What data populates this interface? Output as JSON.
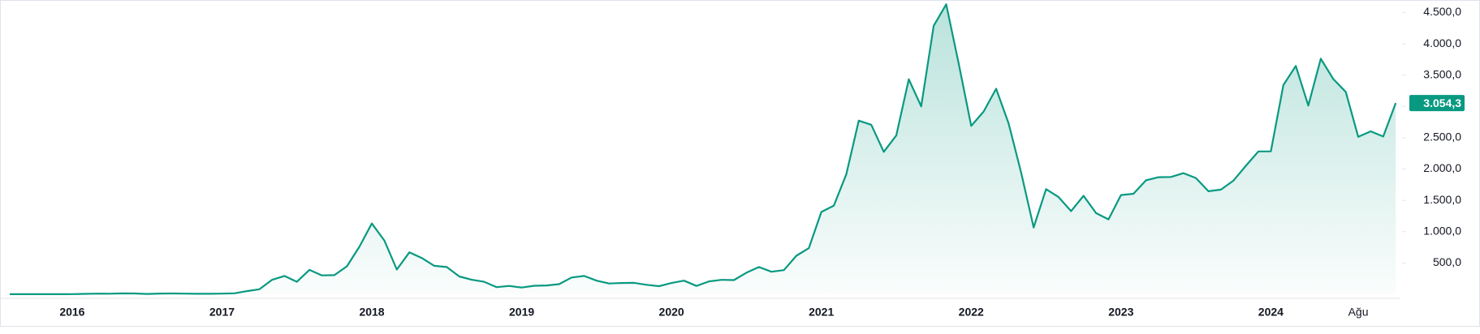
{
  "chart_data": {
    "type": "line",
    "color": "#089981",
    "categories": [
      null,
      null,
      null,
      null,
      null,
      "2016",
      null,
      null,
      null,
      null,
      null,
      null,
      null,
      null,
      null,
      null,
      null,
      "2017",
      null,
      null,
      null,
      null,
      null,
      null,
      null,
      null,
      null,
      null,
      null,
      "2018",
      null,
      null,
      null,
      null,
      null,
      null,
      null,
      null,
      null,
      null,
      null,
      "2019",
      null,
      null,
      null,
      null,
      null,
      null,
      null,
      null,
      null,
      null,
      null,
      "2020",
      null,
      null,
      null,
      null,
      null,
      null,
      null,
      null,
      null,
      null,
      null,
      "2021",
      null,
      null,
      null,
      null,
      null,
      null,
      null,
      null,
      null,
      null,
      null,
      "2022",
      null,
      null,
      null,
      null,
      null,
      null,
      null,
      null,
      null,
      null,
      null,
      "2023",
      null,
      null,
      null,
      null,
      null,
      null,
      null,
      null,
      null,
      null,
      null,
      "2024",
      null,
      null,
      null,
      null,
      null,
      null,
      "Ağu",
      null,
      null,
      null
    ],
    "values": [
      1.3,
      0.7,
      0.9,
      0.9,
      0.9,
      2.2,
      6.4,
      11,
      8.8,
      14,
      12.5,
      5.6,
      11.5,
      13,
      11,
      8.3,
      8,
      10.7,
      16,
      50,
      80,
      230,
      293,
      200,
      390,
      302,
      305,
      447,
      757,
      1130,
      860,
      395,
      670,
      580,
      455,
      435,
      285,
      232,
      200,
      114,
      133,
      107,
      136,
      141,
      162,
      268,
      293,
      218,
      172,
      180,
      183,
      151,
      130,
      180,
      218,
      133,
      206,
      231,
      226,
      345,
      435,
      360,
      386,
      615,
      737,
      1314,
      1417,
      1919,
      2773,
      2707,
      2275,
      2536,
      3434,
      3001,
      4288,
      4632,
      3683,
      2689,
      2919,
      3282,
      2727,
      1942,
      1067,
      1679,
      1553,
      1328,
      1573,
      1296,
      1196,
      1585,
      1605,
      1821,
      1869,
      1874,
      1934,
      1857,
      1645,
      1671,
      1814,
      2052,
      2282,
      2283,
      3340,
      3647,
      3014,
      3763,
      3437,
      3232,
      2514,
      2602,
      2519,
      3054.3
    ],
    "value_labels": [
      null,
      null,
      null,
      null,
      null,
      null,
      null,
      null,
      null,
      null,
      null,
      null,
      null,
      null,
      null,
      null,
      null,
      null,
      null,
      null,
      null,
      null,
      null,
      null,
      null,
      null,
      null,
      null,
      null,
      null,
      null,
      null,
      null,
      null,
      null,
      null,
      null,
      null,
      null,
      null,
      null,
      null,
      null,
      null,
      null,
      null,
      null,
      null,
      null,
      null,
      null,
      null,
      null,
      null,
      null,
      null,
      null,
      null,
      null,
      null,
      null,
      null,
      null,
      null,
      null,
      null,
      null,
      null,
      null,
      null,
      null,
      null,
      null,
      null,
      null,
      null,
      null,
      null,
      null,
      null,
      null,
      null,
      null,
      null,
      null,
      null,
      null,
      null,
      null,
      null,
      null,
      null,
      null,
      null,
      null,
      null,
      null,
      null,
      null,
      null,
      null,
      null,
      null,
      null,
      null,
      null,
      null,
      null,
      null,
      null,
      null,
      "3.054,3"
    ],
    "ylim": [
      0,
      4700
    ],
    "yticks": [
      {
        "value": 500,
        "label": "500,0"
      },
      {
        "value": 1000,
        "label": "1.000,0"
      },
      {
        "value": 1500,
        "label": "1.500,0"
      },
      {
        "value": 2000,
        "label": "2.000,0"
      },
      {
        "value": 2500,
        "label": "2.500,0"
      },
      {
        "value": 3000,
        "label": "3.000,0"
      },
      {
        "value": 3500,
        "label": "3.500,0"
      },
      {
        "value": 4000,
        "label": "4.000,0"
      },
      {
        "value": 4500,
        "label": "4.500,0"
      }
    ],
    "grid": false
  }
}
